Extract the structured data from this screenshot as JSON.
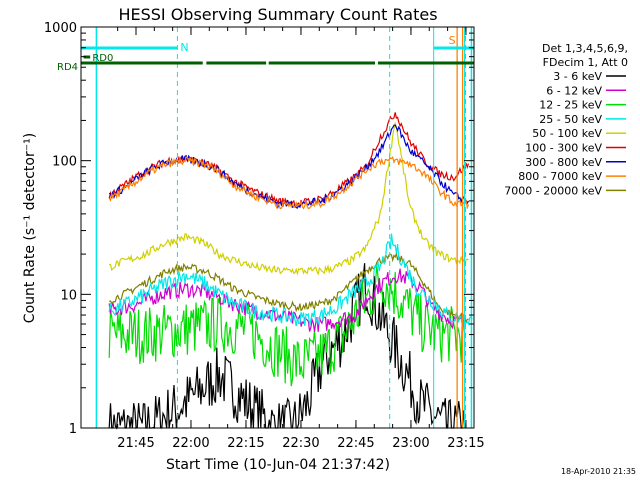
{
  "chart_data": {
    "type": "line",
    "title": "HESSI Observing Summary Count Rates",
    "xlabel": "Start Time (10-Jun-04 21:37:42)",
    "ylabel": "Count Rate (s⁻¹ detector⁻¹)",
    "y_scale": "log",
    "ylim": [
      1,
      1000
    ],
    "xlim_minutes": [
      -7.7,
      99.5
    ],
    "x_ticks": [
      "21:45",
      "22:00",
      "22:15",
      "22:30",
      "22:45",
      "23:00",
      "23:15"
    ],
    "y_ticks": [
      "1",
      "10",
      "100",
      "1000"
    ],
    "legend_position": "right",
    "legend_header": [
      "Det 1,3,4,5,6,9,",
      "FDecim 1, Att 0"
    ],
    "series": [
      {
        "name": "3 - 6 keV",
        "color": "#000000",
        "x": [
          0,
          10,
          20,
          30,
          38,
          45,
          50,
          54,
          58,
          64,
          70,
          78,
          85,
          92,
          97
        ],
        "y": [
          1,
          1,
          1.5,
          2.5,
          1.5,
          1,
          1,
          1.5,
          3,
          5,
          12,
          4,
          1.5,
          1,
          1
        ]
      },
      {
        "name": "6 - 12 keV",
        "color": "#d000d0",
        "x": [
          0,
          4,
          8,
          12,
          16,
          21,
          26,
          30,
          34,
          40,
          45,
          50,
          55,
          59,
          63,
          67,
          70,
          74,
          78,
          82,
          85,
          88,
          93,
          97
        ],
        "y": [
          7.5,
          8,
          8.5,
          9.5,
          10.5,
          11,
          10.5,
          9.5,
          8.5,
          7.5,
          7,
          6.5,
          6,
          6,
          6.5,
          7,
          9,
          12,
          14,
          13,
          11,
          8,
          6.5,
          6
        ]
      },
      {
        "name": "12 - 25 keV",
        "color": "#00dd00",
        "x": [
          0,
          10,
          20,
          30,
          38,
          45,
          52,
          58,
          64,
          70,
          75,
          80,
          85,
          90,
          97
        ],
        "y": [
          5,
          5,
          5.5,
          6,
          5.5,
          4,
          3,
          3.5,
          5,
          9,
          13,
          9,
          6,
          5,
          5
        ]
      },
      {
        "name": "25 - 50 keV",
        "color": "#00e8e8",
        "x": [
          0,
          5,
          10,
          15,
          21,
          26,
          30,
          34,
          40,
          46,
          52,
          58,
          62,
          66,
          70,
          74,
          77,
          80,
          84,
          88,
          92,
          96,
          99
        ],
        "y": [
          7.5,
          8.5,
          10,
          12,
          14,
          12,
          10,
          8.5,
          7.5,
          7,
          6.5,
          7,
          8,
          10,
          12,
          16,
          25,
          18,
          11,
          9,
          7,
          6.5,
          6.5
        ]
      },
      {
        "name": "50 - 100 keV",
        "color": "#d0d000",
        "x": [
          0,
          5,
          10,
          15,
          21,
          26,
          30,
          34,
          40,
          46,
          52,
          58,
          62,
          66,
          70,
          74,
          78,
          82,
          86,
          90,
          94,
          98
        ],
        "y": [
          16,
          18,
          20,
          24,
          27,
          24,
          20,
          18,
          16,
          15,
          15,
          15,
          16,
          18,
          22,
          40,
          200,
          45,
          25,
          20,
          18,
          18
        ]
      },
      {
        "name": "100 - 300 keV",
        "color": "#e00000",
        "x": [
          0,
          4,
          8,
          12,
          16,
          21,
          26,
          30,
          34,
          40,
          46,
          52,
          58,
          62,
          66,
          70,
          74,
          78,
          82,
          86,
          90,
          94,
          98
        ],
        "y": [
          55,
          65,
          78,
          90,
          100,
          103,
          96,
          85,
          70,
          58,
          50,
          48,
          52,
          60,
          72,
          90,
          150,
          230,
          140,
          100,
          80,
          75,
          95
        ]
      },
      {
        "name": "300 - 800 keV",
        "color": "#0000cc",
        "x": [
          0,
          4,
          8,
          12,
          16,
          21,
          26,
          30,
          34,
          40,
          46,
          52,
          58,
          62,
          66,
          70,
          74,
          78,
          82,
          86,
          90,
          94,
          98
        ],
        "y": [
          55,
          62,
          75,
          88,
          98,
          102,
          95,
          84,
          68,
          56,
          48,
          47,
          50,
          58,
          70,
          88,
          120,
          190,
          120,
          95,
          72,
          55,
          50
        ]
      },
      {
        "name": "800 - 7000 keV",
        "color": "#ff8000",
        "x": [
          0,
          4,
          8,
          12,
          16,
          21,
          26,
          30,
          34,
          40,
          46,
          52,
          58,
          62,
          66,
          70,
          74,
          78,
          82,
          86,
          90,
          94,
          98
        ],
        "y": [
          52,
          60,
          72,
          85,
          95,
          100,
          94,
          82,
          66,
          54,
          47,
          46,
          48,
          56,
          68,
          85,
          100,
          100,
          95,
          80,
          60,
          48,
          47
        ]
      },
      {
        "name": "7000 - 20000 keV",
        "color": "#808000",
        "x": [
          0,
          4,
          8,
          12,
          16,
          21,
          26,
          30,
          34,
          40,
          46,
          52,
          58,
          62,
          66,
          70,
          74,
          78,
          82,
          86,
          90,
          94,
          98
        ],
        "y": [
          9,
          10,
          11.5,
          13,
          15,
          16,
          15,
          13,
          11,
          9.5,
          8.5,
          8,
          8.5,
          9.5,
          12,
          15,
          18,
          19,
          17,
          12,
          8,
          7,
          6.5
        ]
      }
    ],
    "annotations": [
      {
        "text": "N",
        "color": "#00e8e8"
      },
      {
        "text": "S",
        "color": "#ff8000"
      },
      {
        "text": "RD0",
        "color": "#006000"
      },
      {
        "text": "RD4",
        "color": "#006000"
      }
    ],
    "footer_text": "18-Apr-2010 21:35"
  }
}
